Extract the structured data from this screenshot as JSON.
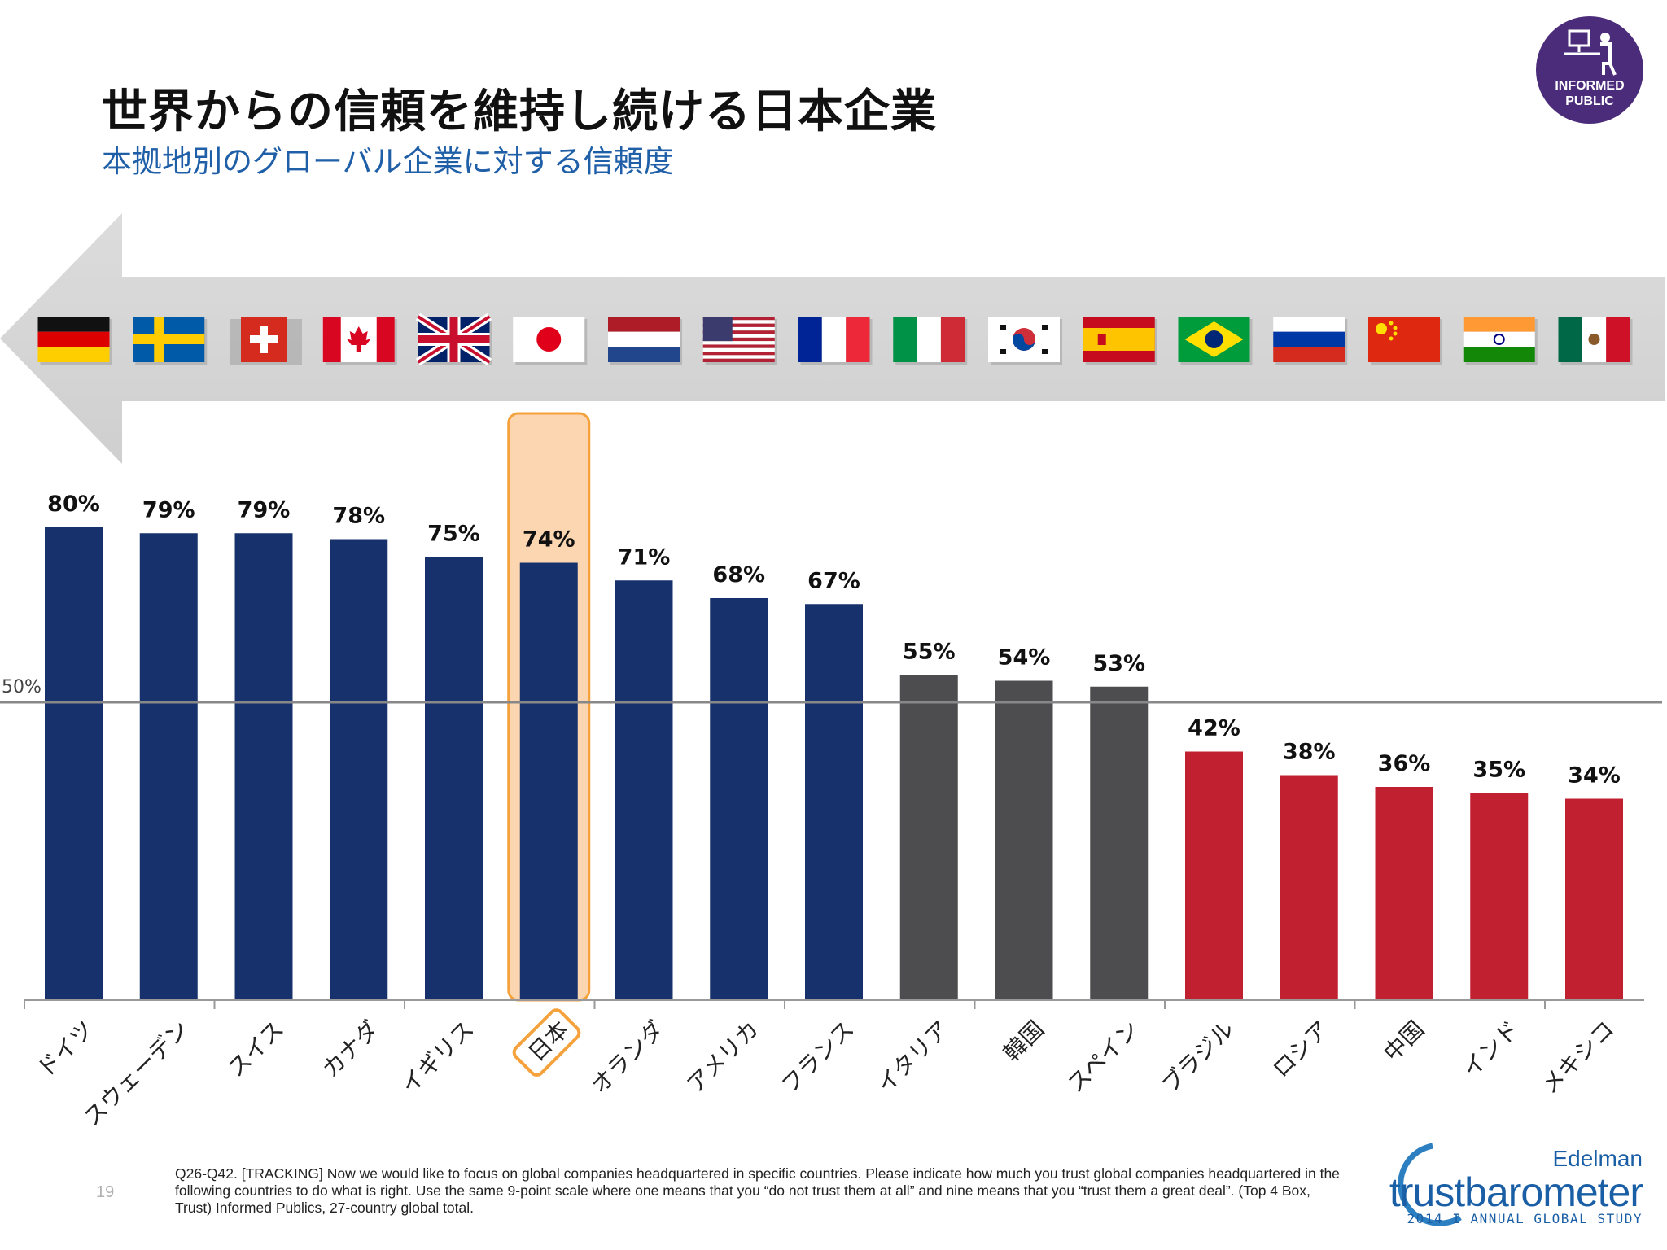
{
  "header": {
    "title": "世界からの信頼を維持し続ける日本企業",
    "subtitle": "本拠地別のグローバル企業に対する信頼度"
  },
  "badge": {
    "line1": "INFORMED",
    "line2": "PUBLIC"
  },
  "chart_data": {
    "type": "bar",
    "categories": [
      "ドイツ",
      "スウェーデン",
      "スイス",
      "カナダ",
      "イギリス",
      "日本",
      "オランダ",
      "アメリカ",
      "フランス",
      "イタリア",
      "韓国",
      "スペイン",
      "ブラジル",
      "ロシア",
      "中国",
      "インド",
      "メキシコ"
    ],
    "values": [
      80,
      79,
      79,
      78,
      75,
      74,
      71,
      68,
      67,
      55,
      54,
      53,
      42,
      38,
      36,
      35,
      34
    ],
    "value_labels": [
      "80%",
      "79%",
      "79%",
      "78%",
      "75%",
      "74%",
      "71%",
      "68%",
      "67%",
      "55%",
      "54%",
      "53%",
      "42%",
      "38%",
      "36%",
      "35%",
      "34%"
    ],
    "bar_colors": [
      "#17316d",
      "#17316d",
      "#17316d",
      "#17316d",
      "#17316d",
      "#17316d",
      "#17316d",
      "#17316d",
      "#17316d",
      "#4d4d4f",
      "#4d4d4f",
      "#4d4d4f",
      "#c0202f",
      "#c0202f",
      "#c0202f",
      "#c0202f",
      "#c0202f"
    ],
    "flags": [
      "germany-flag-icon",
      "sweden-flag-icon",
      "switzerland-flag-icon",
      "canada-flag-icon",
      "uk-flag-icon",
      "japan-flag-icon",
      "netherlands-flag-icon",
      "usa-flag-icon",
      "france-flag-icon",
      "italy-flag-icon",
      "korea-flag-icon",
      "spain-flag-icon",
      "brazil-flag-icon",
      "russia-flag-icon",
      "china-flag-icon",
      "india-flag-icon",
      "mexico-flag-icon"
    ],
    "highlight_category": "日本",
    "highlight_color": "#f5a13c",
    "reference_line": {
      "value": 50,
      "label": "50%"
    },
    "ylim": [
      0,
      100
    ],
    "grid": false,
    "legend": "none"
  },
  "footer": {
    "page_number": "19",
    "footnote": "Q26-Q42. [TRACKING] Now we would like to focus on global companies headquartered in specific countries.  Please indicate how much you trust global companies headquartered in the following countries to do what is right. Use the same 9-point scale where one means that you “do not trust them at all” and nine means that you “trust them a great deal”. (Top 4 Box, Trust) Informed Publics, 27-country global total.",
    "logo_brand": "Edelman",
    "logo_name": "trustbarometer",
    "logo_study": "2014 I ANNUAL GLOBAL STUDY"
  }
}
